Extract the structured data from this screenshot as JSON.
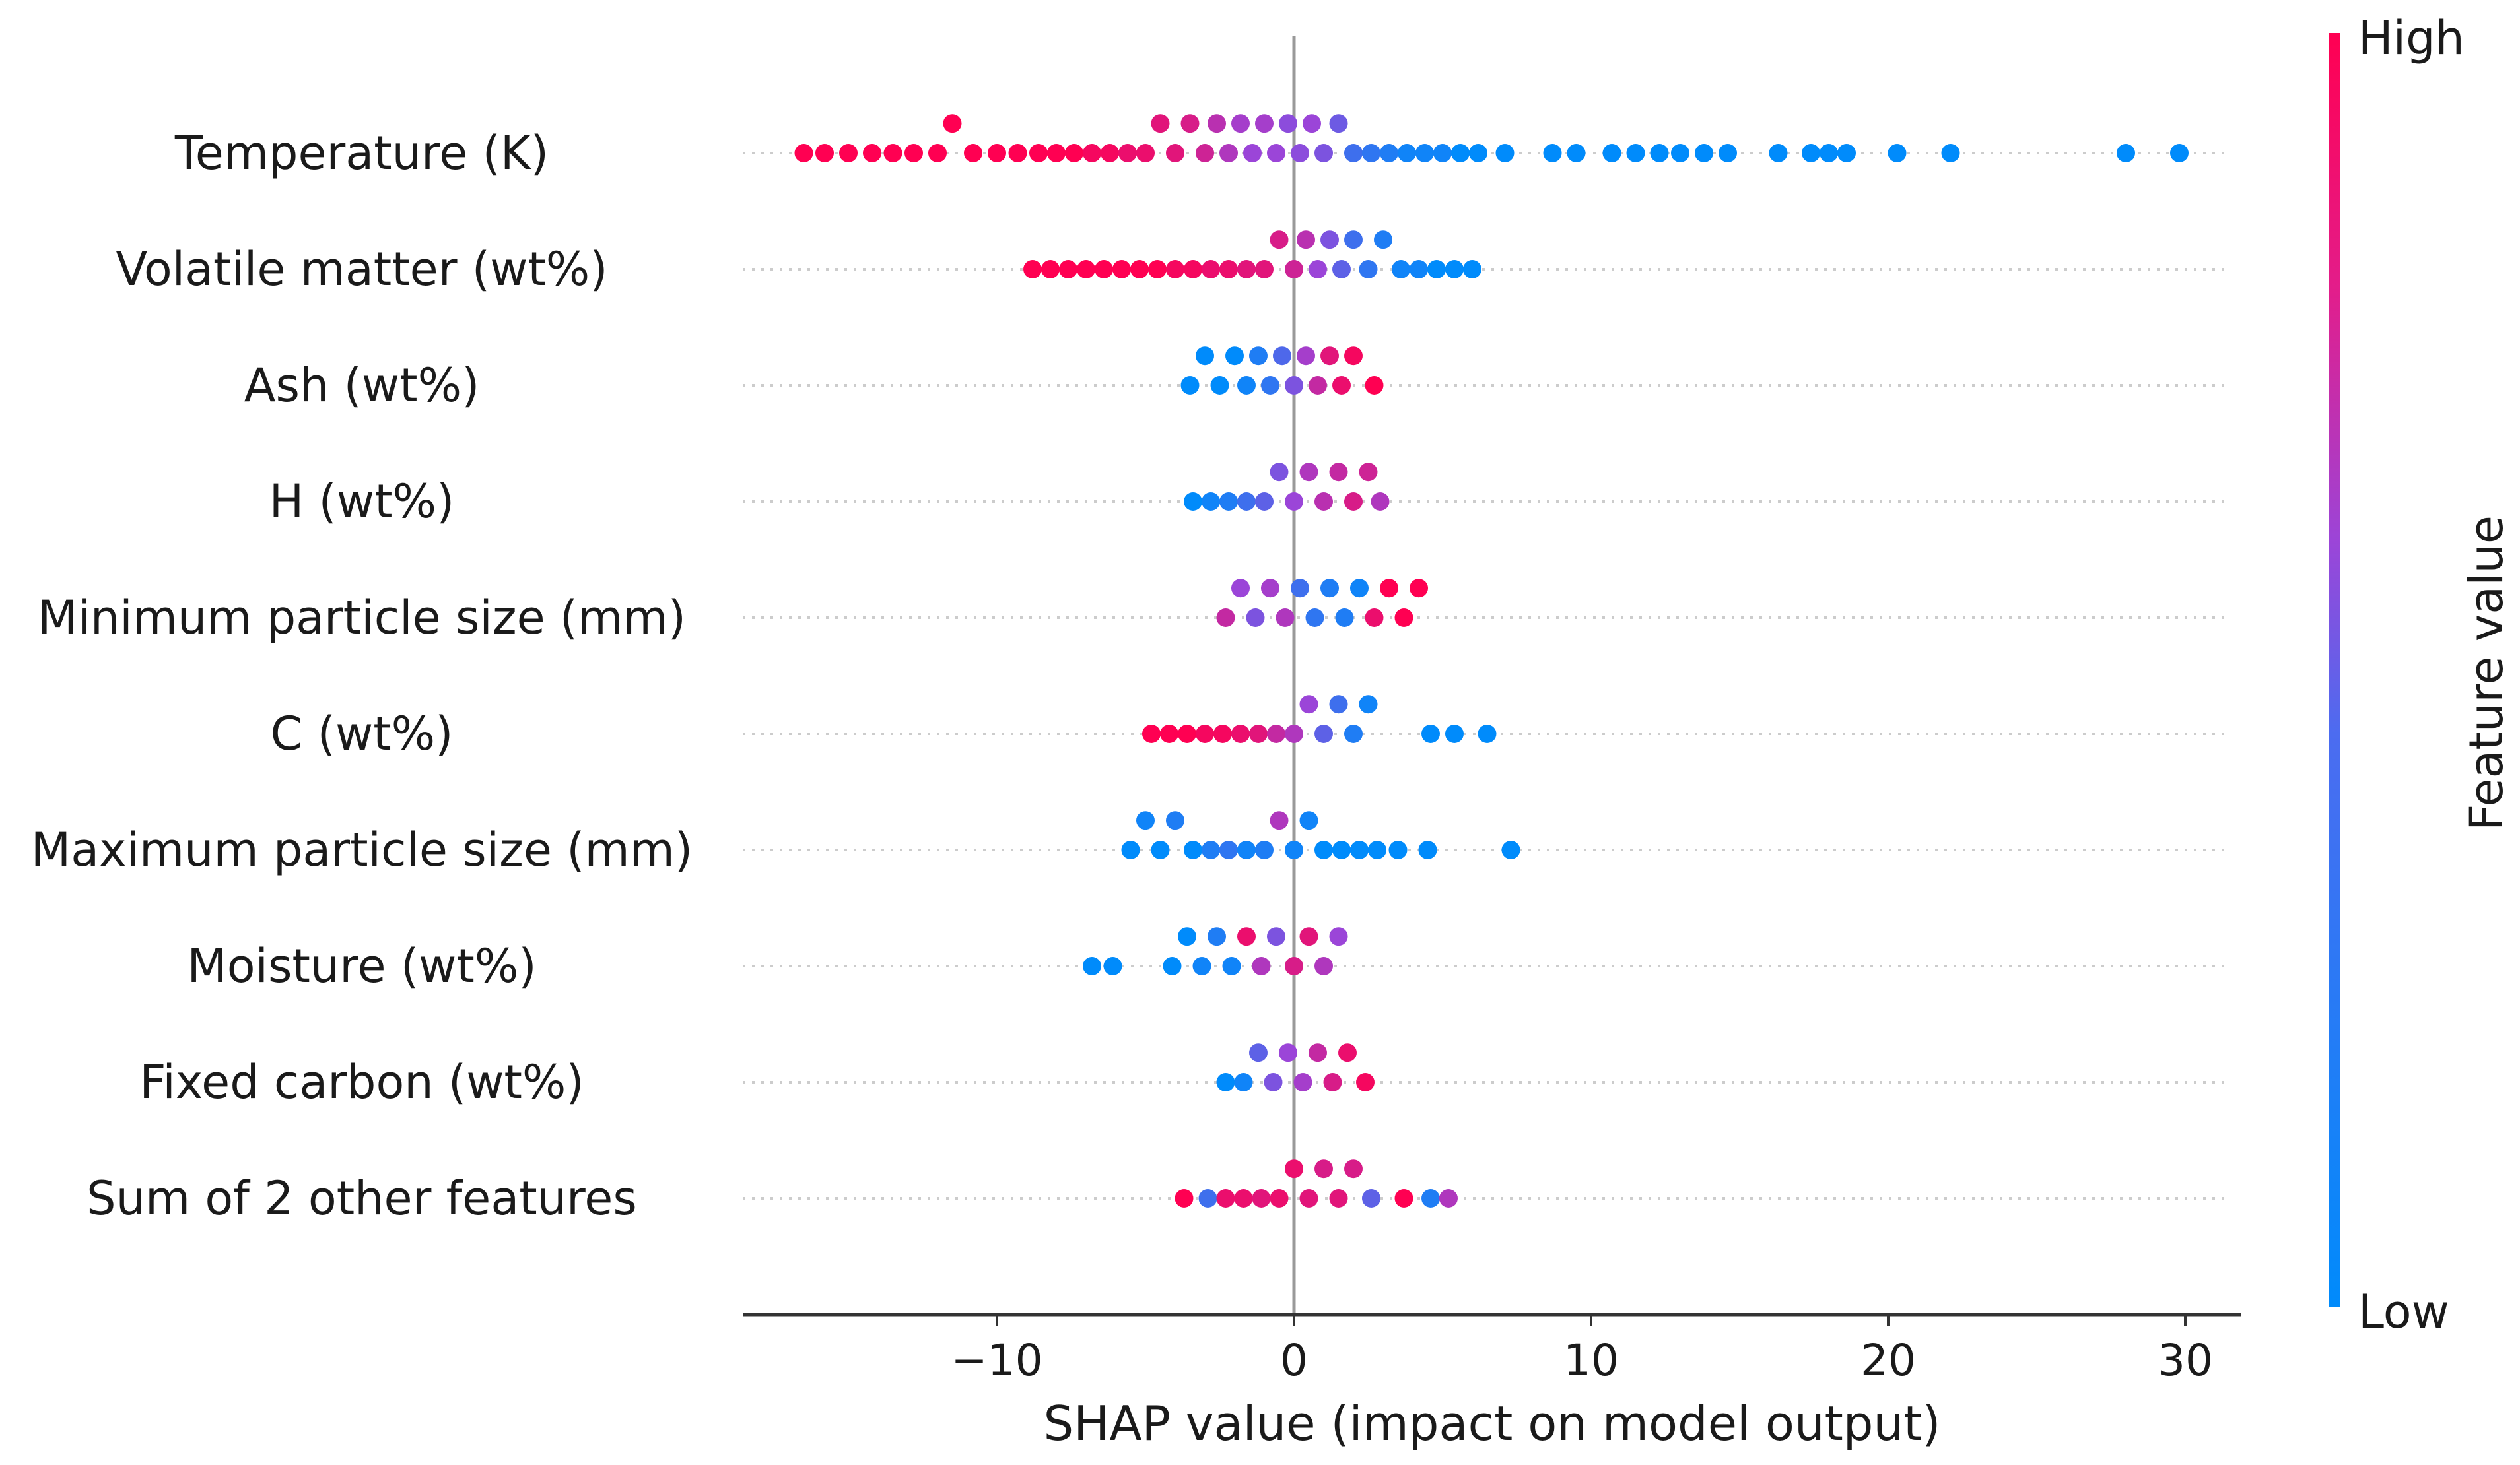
{
  "chart_data": {
    "type": "scatter",
    "subtype": "shap-beeswarm",
    "xlabel": "SHAP value (impact on model output)",
    "xlim": [
      -18.5,
      32.5
    ],
    "xticks": [
      -10,
      0,
      10,
      20,
      30
    ],
    "xtick_labels": [
      "−10",
      "0",
      "10",
      "20",
      "30"
    ],
    "features": [
      {
        "name": "Temperature (K)",
        "points": [
          {
            "x": -16.5,
            "v": 1
          },
          {
            "x": -15.8,
            "v": 1
          },
          {
            "x": -15.0,
            "v": 1
          },
          {
            "x": -14.2,
            "v": 1
          },
          {
            "x": -13.5,
            "v": 1
          },
          {
            "x": -12.8,
            "v": 1
          },
          {
            "x": -12.0,
            "v": 1
          },
          {
            "x": -11.5,
            "v": 1
          },
          {
            "x": -10.8,
            "v": 1
          },
          {
            "x": -10.0,
            "v": 1
          },
          {
            "x": -9.3,
            "v": 1
          },
          {
            "x": -8.6,
            "v": 1
          },
          {
            "x": -8.0,
            "v": 1
          },
          {
            "x": -7.4,
            "v": 1
          },
          {
            "x": -6.8,
            "v": 0.95
          },
          {
            "x": -6.2,
            "v": 0.95
          },
          {
            "x": -5.6,
            "v": 0.9
          },
          {
            "x": -5.0,
            "v": 0.9
          },
          {
            "x": -4.5,
            "v": 0.85
          },
          {
            "x": -4.0,
            "v": 0.85
          },
          {
            "x": -3.5,
            "v": 0.8
          },
          {
            "x": -3.0,
            "v": 0.75
          },
          {
            "x": -2.6,
            "v": 0.65
          },
          {
            "x": -2.2,
            "v": 0.6
          },
          {
            "x": -1.8,
            "v": 0.55
          },
          {
            "x": -1.4,
            "v": 0.5
          },
          {
            "x": -1.0,
            "v": 0.55
          },
          {
            "x": -0.6,
            "v": 0.5
          },
          {
            "x": -0.2,
            "v": 0.45
          },
          {
            "x": 0.2,
            "v": 0.45
          },
          {
            "x": 0.6,
            "v": 0.5
          },
          {
            "x": 1.0,
            "v": 0.4
          },
          {
            "x": 1.5,
            "v": 0.35
          },
          {
            "x": 2.0,
            "v": 0.2
          },
          {
            "x": 2.6,
            "v": 0.15
          },
          {
            "x": 3.2,
            "v": 0.1
          },
          {
            "x": 3.8,
            "v": 0.05
          },
          {
            "x": 4.4,
            "v": 0.05
          },
          {
            "x": 5.0,
            "v": 0.05
          },
          {
            "x": 5.6,
            "v": 0
          },
          {
            "x": 6.2,
            "v": 0
          },
          {
            "x": 7.1,
            "v": 0
          },
          {
            "x": 8.7,
            "v": 0
          },
          {
            "x": 9.5,
            "v": 0
          },
          {
            "x": 10.7,
            "v": 0
          },
          {
            "x": 11.5,
            "v": 0
          },
          {
            "x": 12.3,
            "v": 0
          },
          {
            "x": 13.0,
            "v": 0
          },
          {
            "x": 13.8,
            "v": 0
          },
          {
            "x": 14.6,
            "v": 0
          },
          {
            "x": 16.3,
            "v": 0
          },
          {
            "x": 17.4,
            "v": 0
          },
          {
            "x": 18.0,
            "v": 0
          },
          {
            "x": 18.6,
            "v": 0
          },
          {
            "x": 20.3,
            "v": 0
          },
          {
            "x": 22.1,
            "v": 0
          },
          {
            "x": 28.0,
            "v": 0
          },
          {
            "x": 29.8,
            "v": 0
          }
        ]
      },
      {
        "name": "Volatile matter (wt%)",
        "points": [
          {
            "x": -8.8,
            "v": 1
          },
          {
            "x": -8.2,
            "v": 1
          },
          {
            "x": -7.6,
            "v": 1
          },
          {
            "x": -7.0,
            "v": 1
          },
          {
            "x": -6.4,
            "v": 1
          },
          {
            "x": -5.8,
            "v": 1
          },
          {
            "x": -5.2,
            "v": 1
          },
          {
            "x": -4.6,
            "v": 1
          },
          {
            "x": -4.0,
            "v": 0.95
          },
          {
            "x": -3.4,
            "v": 0.95
          },
          {
            "x": -2.8,
            "v": 0.9
          },
          {
            "x": -2.2,
            "v": 0.9
          },
          {
            "x": -1.6,
            "v": 0.85
          },
          {
            "x": -1.0,
            "v": 0.85
          },
          {
            "x": -0.5,
            "v": 0.8
          },
          {
            "x": 0.0,
            "v": 0.75
          },
          {
            "x": 0.4,
            "v": 0.65
          },
          {
            "x": 0.8,
            "v": 0.5
          },
          {
            "x": 1.2,
            "v": 0.4
          },
          {
            "x": 1.6,
            "v": 0.3
          },
          {
            "x": 2.0,
            "v": 0.2
          },
          {
            "x": 2.5,
            "v": 0.15
          },
          {
            "x": 3.0,
            "v": 0.1
          },
          {
            "x": 3.6,
            "v": 0.05
          },
          {
            "x": 4.2,
            "v": 0.05
          },
          {
            "x": 4.8,
            "v": 0
          },
          {
            "x": 5.4,
            "v": 0
          },
          {
            "x": 6.0,
            "v": 0
          }
        ]
      },
      {
        "name": "Ash (wt%)",
        "points": [
          {
            "x": -3.5,
            "v": 0
          },
          {
            "x": -3.0,
            "v": 0
          },
          {
            "x": -2.5,
            "v": 0
          },
          {
            "x": -2.0,
            "v": 0
          },
          {
            "x": -1.6,
            "v": 0.05
          },
          {
            "x": -1.2,
            "v": 0.1
          },
          {
            "x": -0.8,
            "v": 0.15
          },
          {
            "x": -0.4,
            "v": 0.25
          },
          {
            "x": 0.0,
            "v": 0.4
          },
          {
            "x": 0.4,
            "v": 0.55
          },
          {
            "x": 0.8,
            "v": 0.7
          },
          {
            "x": 1.2,
            "v": 0.85
          },
          {
            "x": 1.6,
            "v": 0.9
          },
          {
            "x": 2.0,
            "v": 0.95
          },
          {
            "x": 2.7,
            "v": 1
          }
        ]
      },
      {
        "name": "H (wt%)",
        "points": [
          {
            "x": -3.4,
            "v": 0
          },
          {
            "x": -2.8,
            "v": 0.05
          },
          {
            "x": -2.2,
            "v": 0.1
          },
          {
            "x": -1.6,
            "v": 0.2
          },
          {
            "x": -1.0,
            "v": 0.3
          },
          {
            "x": -0.5,
            "v": 0.4
          },
          {
            "x": 0.0,
            "v": 0.5
          },
          {
            "x": 0.5,
            "v": 0.6
          },
          {
            "x": 1.0,
            "v": 0.65
          },
          {
            "x": 1.5,
            "v": 0.7
          },
          {
            "x": 2.0,
            "v": 0.8
          },
          {
            "x": 2.5,
            "v": 0.75
          },
          {
            "x": 2.9,
            "v": 0.6
          }
        ]
      },
      {
        "name": "Minimum particle size (mm)",
        "points": [
          {
            "x": -2.3,
            "v": 0.7
          },
          {
            "x": -1.8,
            "v": 0.5
          },
          {
            "x": -1.3,
            "v": 0.4
          },
          {
            "x": -0.8,
            "v": 0.55
          },
          {
            "x": -0.3,
            "v": 0.6
          },
          {
            "x": 0.2,
            "v": 0.2
          },
          {
            "x": 0.7,
            "v": 0.15
          },
          {
            "x": 1.2,
            "v": 0.1
          },
          {
            "x": 1.7,
            "v": 0.1
          },
          {
            "x": 2.2,
            "v": 0.05
          },
          {
            "x": 2.7,
            "v": 0.9
          },
          {
            "x": 3.2,
            "v": 1
          },
          {
            "x": 3.7,
            "v": 1
          },
          {
            "x": 4.2,
            "v": 1
          }
        ]
      },
      {
        "name": "C (wt%)",
        "points": [
          {
            "x": -4.8,
            "v": 1
          },
          {
            "x": -4.2,
            "v": 1
          },
          {
            "x": -3.6,
            "v": 1
          },
          {
            "x": -3.0,
            "v": 0.95
          },
          {
            "x": -2.4,
            "v": 0.95
          },
          {
            "x": -1.8,
            "v": 0.9
          },
          {
            "x": -1.2,
            "v": 0.85
          },
          {
            "x": -0.6,
            "v": 0.7
          },
          {
            "x": 0.0,
            "v": 0.6
          },
          {
            "x": 0.5,
            "v": 0.5
          },
          {
            "x": 1.0,
            "v": 0.3
          },
          {
            "x": 1.5,
            "v": 0.2
          },
          {
            "x": 2.0,
            "v": 0.1
          },
          {
            "x": 2.5,
            "v": 0.05
          },
          {
            "x": 4.6,
            "v": 0
          },
          {
            "x": 5.4,
            "v": 0
          },
          {
            "x": 6.5,
            "v": 0
          }
        ]
      },
      {
        "name": "Maximum particle size (mm)",
        "points": [
          {
            "x": -5.5,
            "v": 0
          },
          {
            "x": -5.0,
            "v": 0.05
          },
          {
            "x": -4.5,
            "v": 0
          },
          {
            "x": -4.0,
            "v": 0.1
          },
          {
            "x": -3.4,
            "v": 0
          },
          {
            "x": -2.8,
            "v": 0.1
          },
          {
            "x": -2.2,
            "v": 0.15
          },
          {
            "x": -1.6,
            "v": 0.05
          },
          {
            "x": -1.0,
            "v": 0.1
          },
          {
            "x": -0.5,
            "v": 0.6
          },
          {
            "x": 0.0,
            "v": 0.05
          },
          {
            "x": 0.5,
            "v": 0.05
          },
          {
            "x": 1.0,
            "v": 0
          },
          {
            "x": 1.6,
            "v": 0
          },
          {
            "x": 2.2,
            "v": 0
          },
          {
            "x": 2.8,
            "v": 0
          },
          {
            "x": 3.5,
            "v": 0
          },
          {
            "x": 4.5,
            "v": 0
          },
          {
            "x": 7.3,
            "v": 0
          }
        ]
      },
      {
        "name": "Moisture (wt%)",
        "points": [
          {
            "x": -6.8,
            "v": 0
          },
          {
            "x": -6.1,
            "v": 0
          },
          {
            "x": -4.1,
            "v": 0
          },
          {
            "x": -3.6,
            "v": 0
          },
          {
            "x": -3.1,
            "v": 0.05
          },
          {
            "x": -2.6,
            "v": 0.1
          },
          {
            "x": -2.1,
            "v": 0.05
          },
          {
            "x": -1.6,
            "v": 0.9
          },
          {
            "x": -1.1,
            "v": 0.6
          },
          {
            "x": -0.6,
            "v": 0.4
          },
          {
            "x": 0.0,
            "v": 0.8
          },
          {
            "x": 0.5,
            "v": 0.85
          },
          {
            "x": 1.0,
            "v": 0.6
          },
          {
            "x": 1.5,
            "v": 0.5
          }
        ]
      },
      {
        "name": "Fixed carbon (wt%)",
        "points": [
          {
            "x": -2.3,
            "v": 0
          },
          {
            "x": -1.7,
            "v": 0.05
          },
          {
            "x": -1.2,
            "v": 0.3
          },
          {
            "x": -0.7,
            "v": 0.4
          },
          {
            "x": -0.2,
            "v": 0.5
          },
          {
            "x": 0.3,
            "v": 0.55
          },
          {
            "x": 0.8,
            "v": 0.7
          },
          {
            "x": 1.3,
            "v": 0.8
          },
          {
            "x": 1.8,
            "v": 0.9
          },
          {
            "x": 2.4,
            "v": 0.95
          }
        ]
      },
      {
        "name": "Sum of 2 other features",
        "points": [
          {
            "x": -3.7,
            "v": 1
          },
          {
            "x": -2.9,
            "v": 0.2
          },
          {
            "x": -2.3,
            "v": 0.9
          },
          {
            "x": -1.7,
            "v": 0.9
          },
          {
            "x": -1.1,
            "v": 0.85
          },
          {
            "x": -0.5,
            "v": 0.9
          },
          {
            "x": 0.0,
            "v": 0.9
          },
          {
            "x": 0.5,
            "v": 0.85
          },
          {
            "x": 1.0,
            "v": 0.8
          },
          {
            "x": 1.5,
            "v": 0.85
          },
          {
            "x": 2.0,
            "v": 0.8
          },
          {
            "x": 2.6,
            "v": 0.3
          },
          {
            "x": 3.7,
            "v": 1
          },
          {
            "x": 4.6,
            "v": 0.1
          },
          {
            "x": 5.2,
            "v": 0.6
          }
        ]
      }
    ],
    "colorbar": {
      "label": "Feature value",
      "high_label": "High",
      "low_label": "Low",
      "high_color": "#ff0052",
      "low_color": "#008bfb"
    },
    "grid": "dotted row guides",
    "zero_line": true
  }
}
